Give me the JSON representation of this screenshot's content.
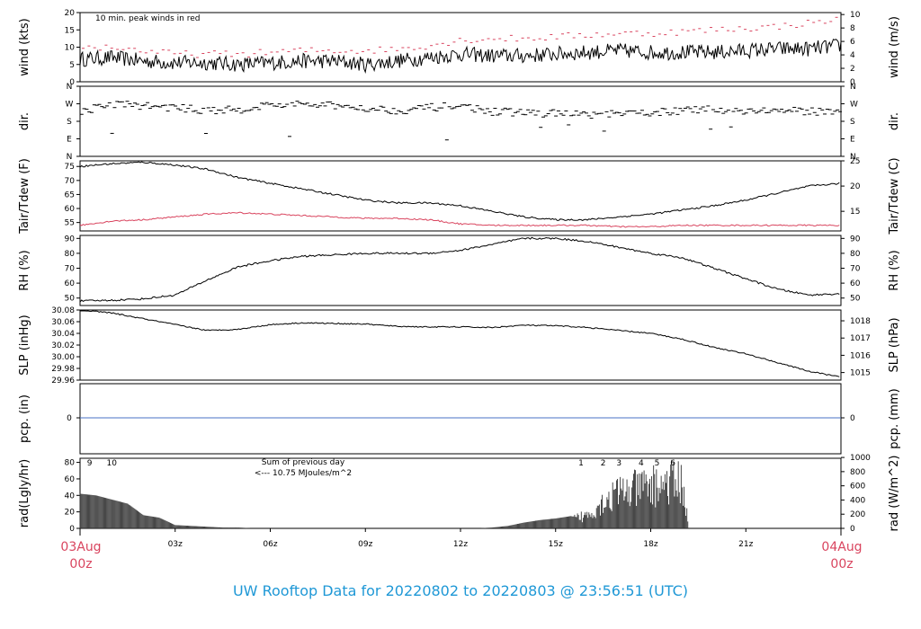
{
  "footer_title": "UW Rooftop Data for 20220802  to  20220803 @ 23:56:51  (UTC)",
  "edge_labels": {
    "left_date": "03Aug",
    "left_hour": "00z",
    "right_date": "04Aug",
    "right_hour": "00z"
  },
  "colors": {
    "primary": "#000000",
    "secondary": "#d9455f",
    "precip": "#4a72c4",
    "annotation": "#a020f0",
    "footer": "#1f98d6"
  },
  "chart_data": [
    {
      "type": "line",
      "panel": "wind",
      "ylabel_left": "wind (kts)",
      "ylabel_right": "wind (m/s)",
      "ylim": [
        0,
        20
      ],
      "yticks_left": [
        "0",
        "5",
        "10",
        "15",
        "20"
      ],
      "yticks_right": [
        "0",
        "2",
        "4",
        "6",
        "8",
        "10"
      ],
      "annotation": "10 min. peak winds in red",
      "x_hours": [
        0,
        1,
        2,
        3,
        4,
        5,
        6,
        7,
        8,
        9,
        10,
        11,
        12,
        13,
        14,
        15,
        16,
        17,
        18,
        19,
        20,
        21,
        22,
        23,
        24
      ],
      "series": [
        {
          "values": [
            6.5,
            7,
            6,
            5.5,
            5.5,
            5,
            5.5,
            6,
            6,
            5,
            6,
            7,
            8,
            7.5,
            7.5,
            8,
            8.5,
            9,
            8.5,
            8.5,
            8.5,
            9,
            9.5,
            9.5,
            10.5
          ]
        },
        {
          "values": [
            10,
            10,
            9,
            8,
            8,
            8,
            8.5,
            9,
            9,
            9,
            9.5,
            10.5,
            12,
            12.5,
            12.5,
            13,
            13.5,
            14,
            14,
            14.5,
            15,
            15.5,
            16,
            17,
            18
          ]
        }
      ]
    },
    {
      "type": "scatter",
      "panel": "dir",
      "ylabel_left": "dir.",
      "ylabel_right": "dir.",
      "yticks": [
        "N",
        "E",
        "S",
        "W",
        "N"
      ],
      "x_hours": [
        0,
        1,
        2,
        3,
        4,
        5,
        6,
        7,
        8,
        9,
        10,
        11,
        12,
        13,
        14,
        15,
        16,
        17,
        18,
        19,
        20,
        21,
        22,
        23,
        24
      ],
      "values": [
        230,
        270,
        260,
        250,
        235,
        240,
        265,
        265,
        260,
        250,
        235,
        250,
        260,
        230,
        225,
        220,
        215,
        215,
        225,
        235,
        240,
        235,
        235,
        230,
        235
      ]
    },
    {
      "type": "line",
      "panel": "temperature",
      "ylabel_left": "Tair/Tdew (F)",
      "ylabel_right": "Tair/Tdew (C)",
      "ylim": [
        52,
        77
      ],
      "yticks_left": [
        "55",
        "60",
        "65",
        "70",
        "75"
      ],
      "yticks_right": [
        "15",
        "20",
        "25"
      ],
      "x_hours": [
        0,
        1,
        2,
        3,
        4,
        5,
        6,
        7,
        8,
        9,
        10,
        11,
        12,
        13,
        14,
        15,
        16,
        17,
        18,
        19,
        20,
        21,
        22,
        23,
        24
      ],
      "series": [
        {
          "values": [
            75,
            76,
            76.5,
            75.5,
            74,
            71,
            69,
            67,
            65,
            63,
            62,
            62,
            61,
            59,
            57,
            56,
            56,
            57,
            58,
            59.5,
            61,
            63,
            65.5,
            68,
            69
          ]
        },
        {
          "values": [
            54,
            55.5,
            56,
            57,
            58,
            58.5,
            58,
            57.5,
            57,
            56.5,
            56.5,
            56,
            54.5,
            54,
            54,
            54,
            54,
            53.5,
            53.5,
            54,
            54,
            54,
            54,
            54,
            54
          ]
        }
      ]
    },
    {
      "type": "line",
      "panel": "rh",
      "ylabel_left": "RH (%)",
      "ylabel_right": "RH (%)",
      "ylim": [
        45,
        92
      ],
      "yticks_left": [
        "50",
        "60",
        "70",
        "80",
        "90"
      ],
      "yticks_right": [
        "50",
        "60",
        "70",
        "80",
        "90"
      ],
      "x_hours": [
        0,
        1,
        2,
        3,
        4,
        5,
        6,
        7,
        8,
        9,
        10,
        11,
        12,
        13,
        14,
        15,
        16,
        17,
        18,
        19,
        20,
        21,
        22,
        23,
        24
      ],
      "values": [
        48,
        48.5,
        49.5,
        52,
        62,
        71,
        75,
        78,
        79,
        80,
        80,
        80,
        82,
        86,
        90,
        90,
        88,
        84,
        80,
        77,
        70,
        63,
        56,
        52,
        53
      ]
    },
    {
      "type": "line",
      "panel": "pressure",
      "ylabel_left": "SLP (inHg)",
      "ylabel_right": "SLP (hPa)",
      "ylim": [
        29.96,
        30.08
      ],
      "yticks_left": [
        "29.96",
        "29.98",
        "30.00",
        "30.02",
        "30.04",
        "30.06",
        "30.08"
      ],
      "yticks_right": [
        "1015",
        "1016",
        "1017",
        "1018"
      ],
      "x_hours": [
        0,
        1,
        2,
        3,
        4,
        5,
        6,
        7,
        8,
        9,
        10,
        11,
        12,
        13,
        14,
        15,
        16,
        17,
        18,
        19,
        20,
        21,
        22,
        23,
        24
      ],
      "values": [
        30.08,
        30.075,
        30.065,
        30.055,
        30.045,
        30.047,
        30.055,
        30.058,
        30.057,
        30.056,
        30.052,
        30.051,
        30.051,
        30.05,
        30.054,
        30.053,
        30.05,
        30.045,
        30.04,
        30.03,
        30.016,
        30.005,
        29.99,
        29.975,
        29.965
      ]
    },
    {
      "type": "line",
      "panel": "precip",
      "ylabel_left": "pcp. (in)",
      "ylabel_right": "pcp. (mm)",
      "ytick_left": "0",
      "ytick_right": "0",
      "x_hours": [
        0,
        24
      ],
      "values": [
        0,
        0
      ]
    },
    {
      "type": "bar",
      "panel": "radiation",
      "ylabel_left": "rad(Lgly/hr)",
      "ylabel_right": "rad (W/m^2)",
      "ylim": [
        0,
        85
      ],
      "yticks_left": [
        "0",
        "20",
        "40",
        "60",
        "80"
      ],
      "yticks_right": [
        "0",
        "200",
        "400",
        "600",
        "800",
        "1000"
      ],
      "annotation": [
        "Sum of previous day",
        "<--- 10.75 MJoules/m^2"
      ],
      "hour_markers_left": [
        {
          "h": 0.3,
          "label": "9"
        },
        {
          "h": 1.0,
          "label": "10"
        }
      ],
      "hour_markers_right": [
        {
          "h": 15.8,
          "label": "1"
        },
        {
          "h": 16.5,
          "label": "2"
        },
        {
          "h": 17.0,
          "label": "3"
        },
        {
          "h": 17.7,
          "label": "4"
        },
        {
          "h": 18.2,
          "label": "5"
        },
        {
          "h": 18.7,
          "label": "6"
        }
      ],
      "x_hours": [
        0,
        0.5,
        1,
        1.5,
        2,
        2.5,
        3,
        3.5,
        4,
        4.5,
        5,
        5.5,
        6,
        12.5,
        13,
        13.5,
        14,
        14.5,
        15,
        15.5,
        16,
        16.5,
        17,
        17.5,
        18,
        18.5,
        19,
        19.2
      ],
      "values": [
        42,
        40,
        35,
        30,
        16,
        13,
        4,
        3,
        2,
        1,
        1,
        0,
        0,
        0,
        1,
        3,
        7,
        10,
        12,
        15,
        22,
        45,
        60,
        65,
        70,
        75,
        78,
        0
      ]
    }
  ],
  "x_axis": {
    "ticks": [
      "03z",
      "06z",
      "09z",
      "12z",
      "15z",
      "18z",
      "21z"
    ],
    "tick_hours": [
      3,
      6,
      9,
      12,
      15,
      18,
      21
    ]
  }
}
